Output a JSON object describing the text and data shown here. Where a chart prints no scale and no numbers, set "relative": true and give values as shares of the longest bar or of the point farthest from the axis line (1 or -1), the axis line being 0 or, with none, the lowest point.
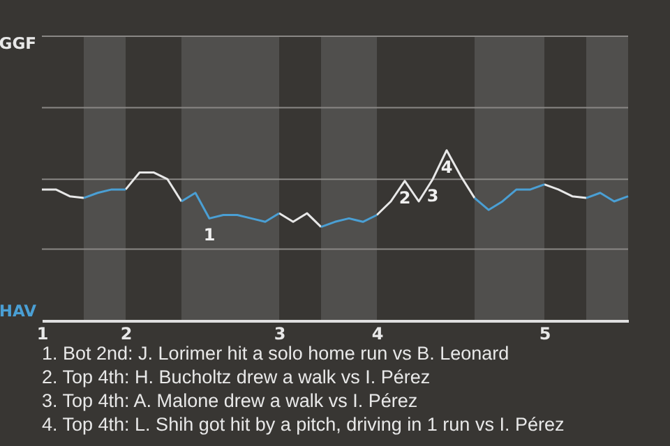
{
  "chart_data": {
    "type": "line",
    "relative": true,
    "categories": [
      "1",
      null,
      null,
      null,
      null,
      null,
      "2",
      null,
      null,
      null,
      null,
      null,
      null,
      null,
      null,
      null,
      null,
      "3",
      null,
      null,
      null,
      null,
      null,
      null,
      "4",
      null,
      null,
      null,
      null,
      null,
      null,
      null,
      null,
      null,
      null,
      null,
      "5",
      null,
      null,
      null,
      null,
      null,
      null
    ],
    "series": [
      {
        "color": "#e8e8e8",
        "values": [
          0.77,
          0.77,
          0.73,
          0.72,
          null,
          null,
          0.77,
          0.87,
          0.87,
          0.83,
          0.7,
          null,
          null,
          null,
          null,
          null,
          null,
          0.63,
          0.58,
          0.63,
          0.55,
          null,
          null,
          null,
          0.62,
          0.7,
          0.82,
          0.7,
          0.83,
          1,
          0.85,
          0.72,
          null,
          null,
          null,
          null,
          0.8,
          0.77,
          0.73,
          0.72,
          null,
          null,
          null
        ]
      },
      {
        "color": "#4a9fd4",
        "values": [
          null,
          null,
          null,
          0.72,
          0.75,
          0.77,
          0.77,
          null,
          null,
          null,
          0.7,
          0.75,
          0.6,
          0.62,
          0.62,
          0.6,
          0.58,
          0.63,
          null,
          null,
          0.55,
          0.58,
          0.6,
          0.58,
          0.62,
          null,
          null,
          null,
          null,
          null,
          null,
          0.72,
          0.65,
          0.7,
          0.77,
          0.77,
          0.8,
          null,
          null,
          0.72,
          0.75,
          0.7,
          0.73
        ]
      }
    ],
    "ref_lines": [
      {
        "axis": "y",
        "value": 0.42,
        "color": "#8a8886"
      },
      {
        "axis": "y",
        "value": 0.83,
        "color": "#8a8886"
      },
      {
        "axis": "y",
        "value": 1.25,
        "color": "#8a8886"
      },
      {
        "axis": "y",
        "value": 1.67,
        "color": "#8a8886"
      }
    ],
    "annotations": [
      "GGF",
      "HAV",
      {
        "text": "1",
        "y": 0.6
      },
      {
        "text": "2",
        "y": 0.82
      },
      {
        "text": "3",
        "y": 0.83
      },
      {
        "text": "4",
        "y": 1
      },
      "1. Bot 2nd: J. Lorimer hit a solo home run vs B. Leonard",
      "2. Top 4th: H. Bucholtz drew a walk vs I. Pérez",
      "3. Top 4th: A. Malone drew a walk vs I. Pérez",
      "4. Top 4th: L. Shih got hit by a pitch, driving in 1 run vs I. Pérez"
    ]
  }
}
